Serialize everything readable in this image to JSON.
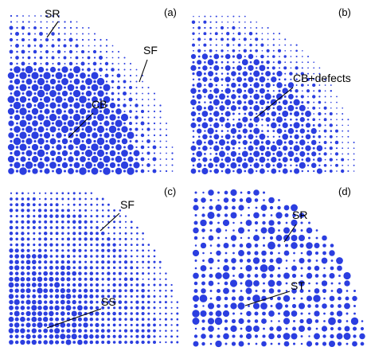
{
  "colors": {
    "dot": "#2b3ee0",
    "background": "#ffffff",
    "pointer": "#000000"
  },
  "panels": [
    {
      "id": "a",
      "label": "(a)",
      "annotations": [
        "SR",
        "SF",
        "CB"
      ]
    },
    {
      "id": "b",
      "label": "(b)",
      "annotations": [
        "CB+defects"
      ]
    },
    {
      "id": "c",
      "label": "(c)",
      "annotations": [
        "SF",
        "SS"
      ]
    },
    {
      "id": "d",
      "label": "(d)",
      "annotations": [
        "SR",
        "ST"
      ]
    }
  ]
}
